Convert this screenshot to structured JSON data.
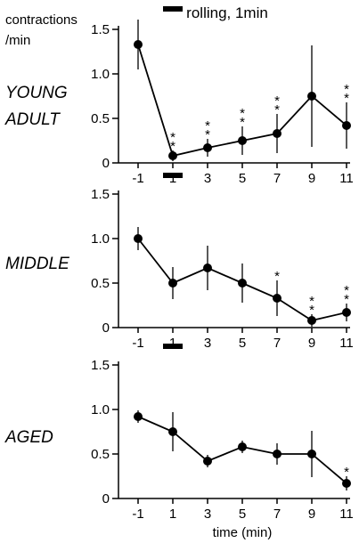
{
  "ylabel_lines": [
    "contractions",
    "/min"
  ],
  "stimulus_label": "rolling, 1min",
  "xlabel": "time (min)",
  "chart_data": [
    {
      "type": "line",
      "panel": "YOUNG ADULT",
      "label_lines": [
        "YOUNG",
        "ADULT"
      ],
      "x": [
        -1,
        1,
        3,
        5,
        7,
        9,
        11
      ],
      "values": [
        1.33,
        0.08,
        0.17,
        0.25,
        0.33,
        0.75,
        0.42
      ],
      "errors": [
        0.28,
        0.06,
        0.1,
        0.16,
        0.22,
        0.57,
        0.26
      ],
      "significance": [
        "",
        "**",
        "**",
        "**",
        "**",
        "",
        "**"
      ],
      "stimulus_bar": [
        0,
        2
      ],
      "ylim": [
        0,
        1.6
      ],
      "yticks": [
        "0",
        "0.5",
        "1.0",
        "1.5"
      ],
      "xticks": [
        "-1",
        "1",
        "3",
        "5",
        "7",
        "9",
        "11"
      ]
    },
    {
      "type": "line",
      "panel": "MIDDLE",
      "label_lines": [
        "MIDDLE"
      ],
      "x": [
        -1,
        1,
        3,
        5,
        7,
        9,
        11
      ],
      "values": [
        1.0,
        0.5,
        0.67,
        0.5,
        0.33,
        0.08,
        0.17
      ],
      "errors": [
        0.13,
        0.18,
        0.25,
        0.22,
        0.2,
        0.07,
        0.1
      ],
      "significance": [
        "",
        "",
        "",
        "",
        "*",
        "**",
        "**"
      ],
      "stimulus_bar": [
        0,
        2
      ],
      "ylim": [
        0,
        1.6
      ],
      "yticks": [
        "0",
        "0.5",
        "1.0",
        "1.5"
      ],
      "xticks": [
        "-1",
        "1",
        "3",
        "5",
        "7",
        "9",
        "11"
      ]
    },
    {
      "type": "line",
      "panel": "AGED",
      "label_lines": [
        "AGED"
      ],
      "x": [
        -1,
        1,
        3,
        5,
        7,
        9,
        11
      ],
      "values": [
        0.92,
        0.75,
        0.42,
        0.58,
        0.5,
        0.5,
        0.17
      ],
      "errors": [
        0.07,
        0.22,
        0.07,
        0.07,
        0.12,
        0.26,
        0.08
      ],
      "significance": [
        "",
        "",
        "",
        "",
        "",
        "",
        "*"
      ],
      "stimulus_bar": [
        0,
        2
      ],
      "ylim": [
        0,
        1.6
      ],
      "yticks": [
        "0",
        "0.5",
        "1.0",
        "1.5"
      ],
      "xticks": [
        "-1",
        "1",
        "3",
        "5",
        "7",
        "9",
        "11"
      ]
    }
  ]
}
